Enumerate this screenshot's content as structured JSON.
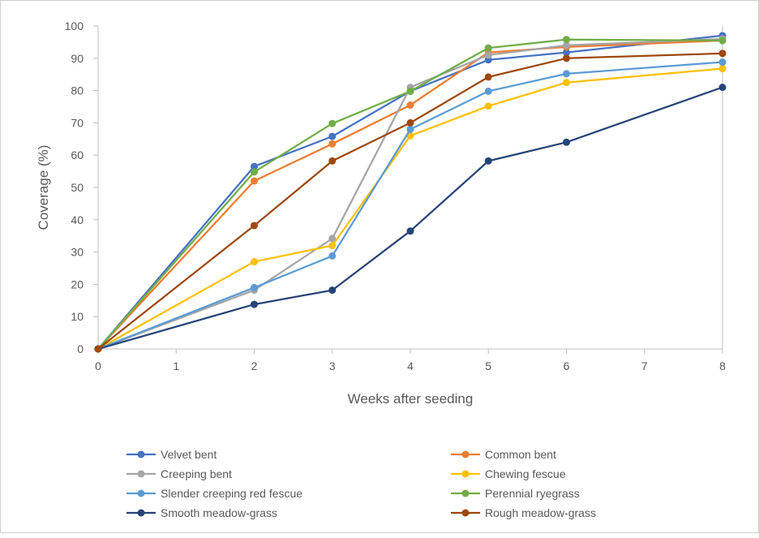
{
  "chart_data": {
    "type": "line",
    "title": "",
    "xlabel": "Weeks after seeding",
    "ylabel": "Coverage (%)",
    "x_ticks": [
      0,
      1,
      2,
      3,
      4,
      5,
      6,
      7,
      8
    ],
    "x_tick_labels": [
      "0",
      "1",
      "2",
      "3",
      "4",
      "5",
      "6",
      "7",
      "8"
    ],
    "y_ticks": [
      0,
      10,
      20,
      30,
      40,
      50,
      60,
      70,
      80,
      90,
      100
    ],
    "y_tick_labels": [
      "0",
      "10",
      "20",
      "30",
      "40",
      "50",
      "60",
      "70",
      "80",
      "90",
      "100"
    ],
    "xlim": [
      0,
      8
    ],
    "ylim": [
      0,
      100
    ],
    "grid": false,
    "legend_position": "bottom",
    "x": [
      0,
      2,
      3,
      4,
      5,
      6,
      8
    ],
    "series": [
      {
        "name": "Velvet bent",
        "color": "#4472C4",
        "values": [
          0,
          56.5,
          65.8,
          79.8,
          89.5,
          91.8,
          97.0
        ]
      },
      {
        "name": "Common bent",
        "color": "#ED7D31",
        "values": [
          0,
          52.0,
          63.5,
          75.5,
          91.8,
          93.5,
          95.5
        ]
      },
      {
        "name": "Creeping bent",
        "color": "#A5A5A5",
        "values": [
          0,
          18.2,
          34.2,
          81.0,
          91.0,
          94.0,
          96.0
        ]
      },
      {
        "name": "Chewing fescue",
        "color": "#FFC000",
        "values": [
          0,
          27.0,
          32.0,
          66.0,
          75.2,
          82.5,
          86.8
        ]
      },
      {
        "name": "Slender creeping red fescue",
        "color": "#5B9BD5",
        "values": [
          0,
          19.0,
          28.8,
          68.0,
          79.8,
          85.2,
          88.8
        ]
      },
      {
        "name": "Perennial ryegrass",
        "color": "#70AD47",
        "values": [
          0,
          54.8,
          69.8,
          79.8,
          93.2,
          95.8,
          95.5
        ]
      },
      {
        "name": "Smooth meadow-grass",
        "color": "#264478",
        "values": [
          0,
          13.8,
          18.2,
          36.5,
          58.2,
          64.0,
          81.0
        ]
      },
      {
        "name": "Rough meadow-grass",
        "color": "#9E480E",
        "values": [
          0,
          38.2,
          58.2,
          70.0,
          84.2,
          90.0,
          91.5
        ]
      }
    ]
  }
}
